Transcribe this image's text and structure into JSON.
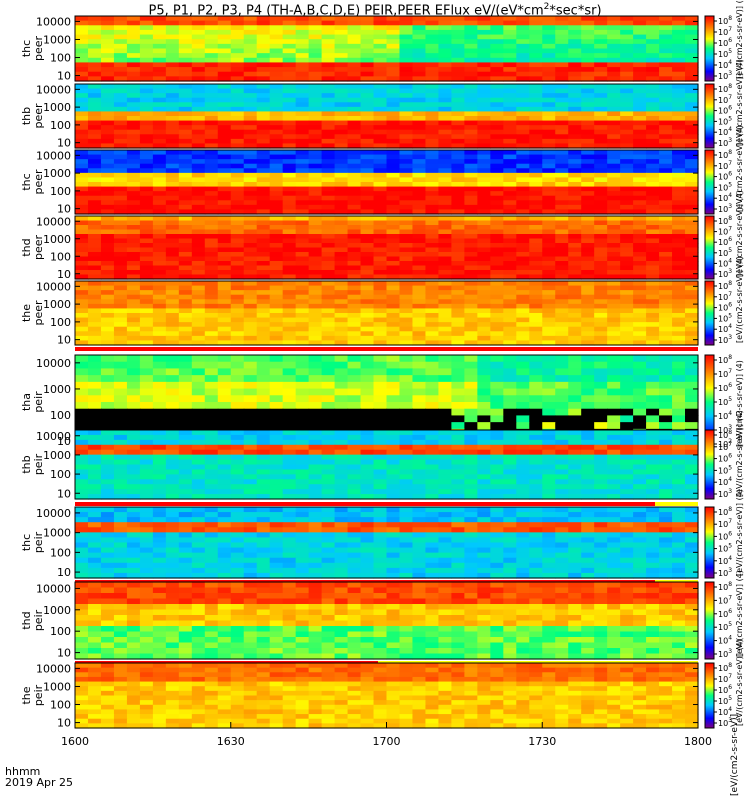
{
  "title": {
    "prefix": "P5, P1, P2, P3, P4 (TH-A,B,C,D,E) PEIR,PEER EFlux eV/(eV*cm",
    "sup": "2",
    "suffix": "*sec*sr)"
  },
  "time_axis": {
    "label_line1": "hhmm",
    "label_line2": "2019 Apr 25",
    "ticks": [
      "1600",
      "1630",
      "1700",
      "1730",
      "1800"
    ]
  },
  "colorbar_unit_label": "[eV/(cm2-s-sr-eV)] (4)",
  "right_axis_label": "[eV/(cm2-s-sr-eV)]",
  "energy_ticks": [
    "10",
    "100",
    "1000",
    "10000"
  ],
  "colorbar_ticks": [
    "10",
    "10",
    "10",
    "10",
    "10",
    "10",
    "10"
  ],
  "colorbar_exps": [
    "8",
    "7",
    "6",
    "5",
    "4",
    "3",
    "2"
  ],
  "panels": [
    {
      "probe": "thc",
      "species": "peer",
      "status_bar": false
    },
    {
      "probe": "thb",
      "species": "peer",
      "status_bar": false
    },
    {
      "probe": "thc",
      "species": "peer",
      "status_bar": false
    },
    {
      "probe": "thd",
      "species": "peer",
      "status_bar": false
    },
    {
      "probe": "the",
      "species": "peer",
      "status_bar": true
    },
    {
      "probe": "tha",
      "species": "peir",
      "status_bar": true
    },
    {
      "probe": "thb",
      "species": "peir",
      "status_bar": true
    },
    {
      "probe": "thc",
      "species": "peir",
      "status_bar": true
    },
    {
      "probe": "thd",
      "species": "peir",
      "status_bar": true
    },
    {
      "probe": "the",
      "species": "peir",
      "status_bar": false
    }
  ],
  "chart_data": {
    "type": "heatmap",
    "title": "P5, P1, P2, P3, P4 (TH-A,B,C,D,E) PEIR,PEER EFlux eV/(eV*cm2*sec*sr)",
    "x_axis": {
      "label": "hhmm 2019 Apr 25",
      "range": [
        "1600",
        "1800"
      ],
      "ticks": [
        "1600",
        "1630",
        "1700",
        "1730",
        "1800"
      ]
    },
    "y_axis": {
      "scale": "log",
      "range": [
        5,
        20000
      ],
      "ticks": [
        10,
        100,
        1000,
        10000
      ]
    },
    "color_scale": {
      "scale": "log",
      "range": [
        100,
        100000000
      ],
      "colors": [
        "#800080",
        "#0000ff",
        "#00c8ff",
        "#00ff80",
        "#ffff00",
        "#ff8000",
        "#ff0000"
      ]
    },
    "panels": [
      {
        "probe": "thc",
        "species": "peer"
      },
      {
        "probe": "thb",
        "species": "peer"
      },
      {
        "probe": "thc",
        "species": "peer"
      },
      {
        "probe": "thd",
        "species": "peer"
      },
      {
        "probe": "the",
        "species": "peer"
      },
      {
        "probe": "tha",
        "species": "peir"
      },
      {
        "probe": "thb",
        "species": "peir"
      },
      {
        "probe": "thc",
        "species": "peir"
      },
      {
        "probe": "thd",
        "species": "peir"
      },
      {
        "probe": "the",
        "species": "peir"
      }
    ]
  }
}
